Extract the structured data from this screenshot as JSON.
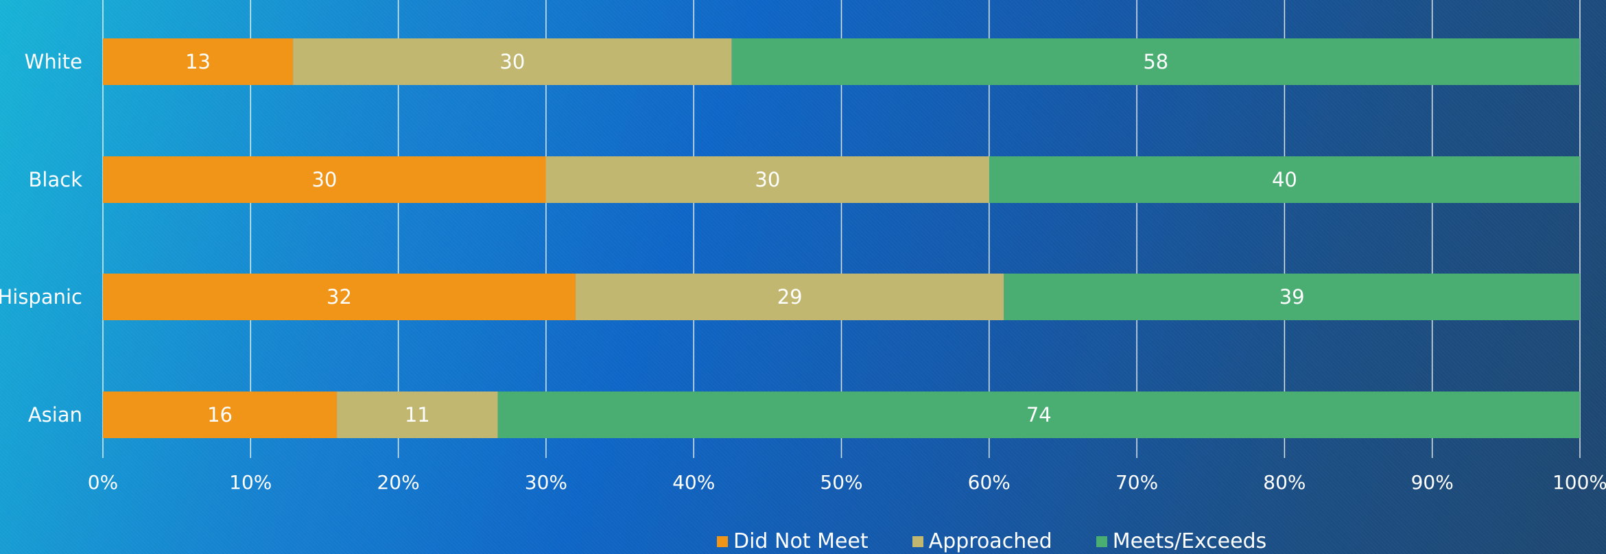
{
  "chart_data": {
    "type": "bar",
    "orientation": "horizontal",
    "stacked": true,
    "categories": [
      "White",
      "Black",
      "Hispanic",
      "Asian"
    ],
    "series": [
      {
        "name": "Did Not Meet",
        "color": "#f09517",
        "values": [
          13,
          30,
          32,
          16
        ]
      },
      {
        "name": "Approached",
        "color": "#c2b771",
        "values": [
          30,
          30,
          29,
          11
        ]
      },
      {
        "name": "Meets/Exceeds",
        "color": "#4aae73",
        "values": [
          58,
          40,
          39,
          74
        ]
      }
    ],
    "x_ticks": [
      "0%",
      "10%",
      "20%",
      "30%",
      "40%",
      "50%",
      "60%",
      "70%",
      "80%",
      "90%",
      "100%"
    ],
    "xlim": [
      0,
      100
    ],
    "xlabel": "",
    "ylabel": "",
    "grid": true,
    "legend_position": "bottom"
  }
}
